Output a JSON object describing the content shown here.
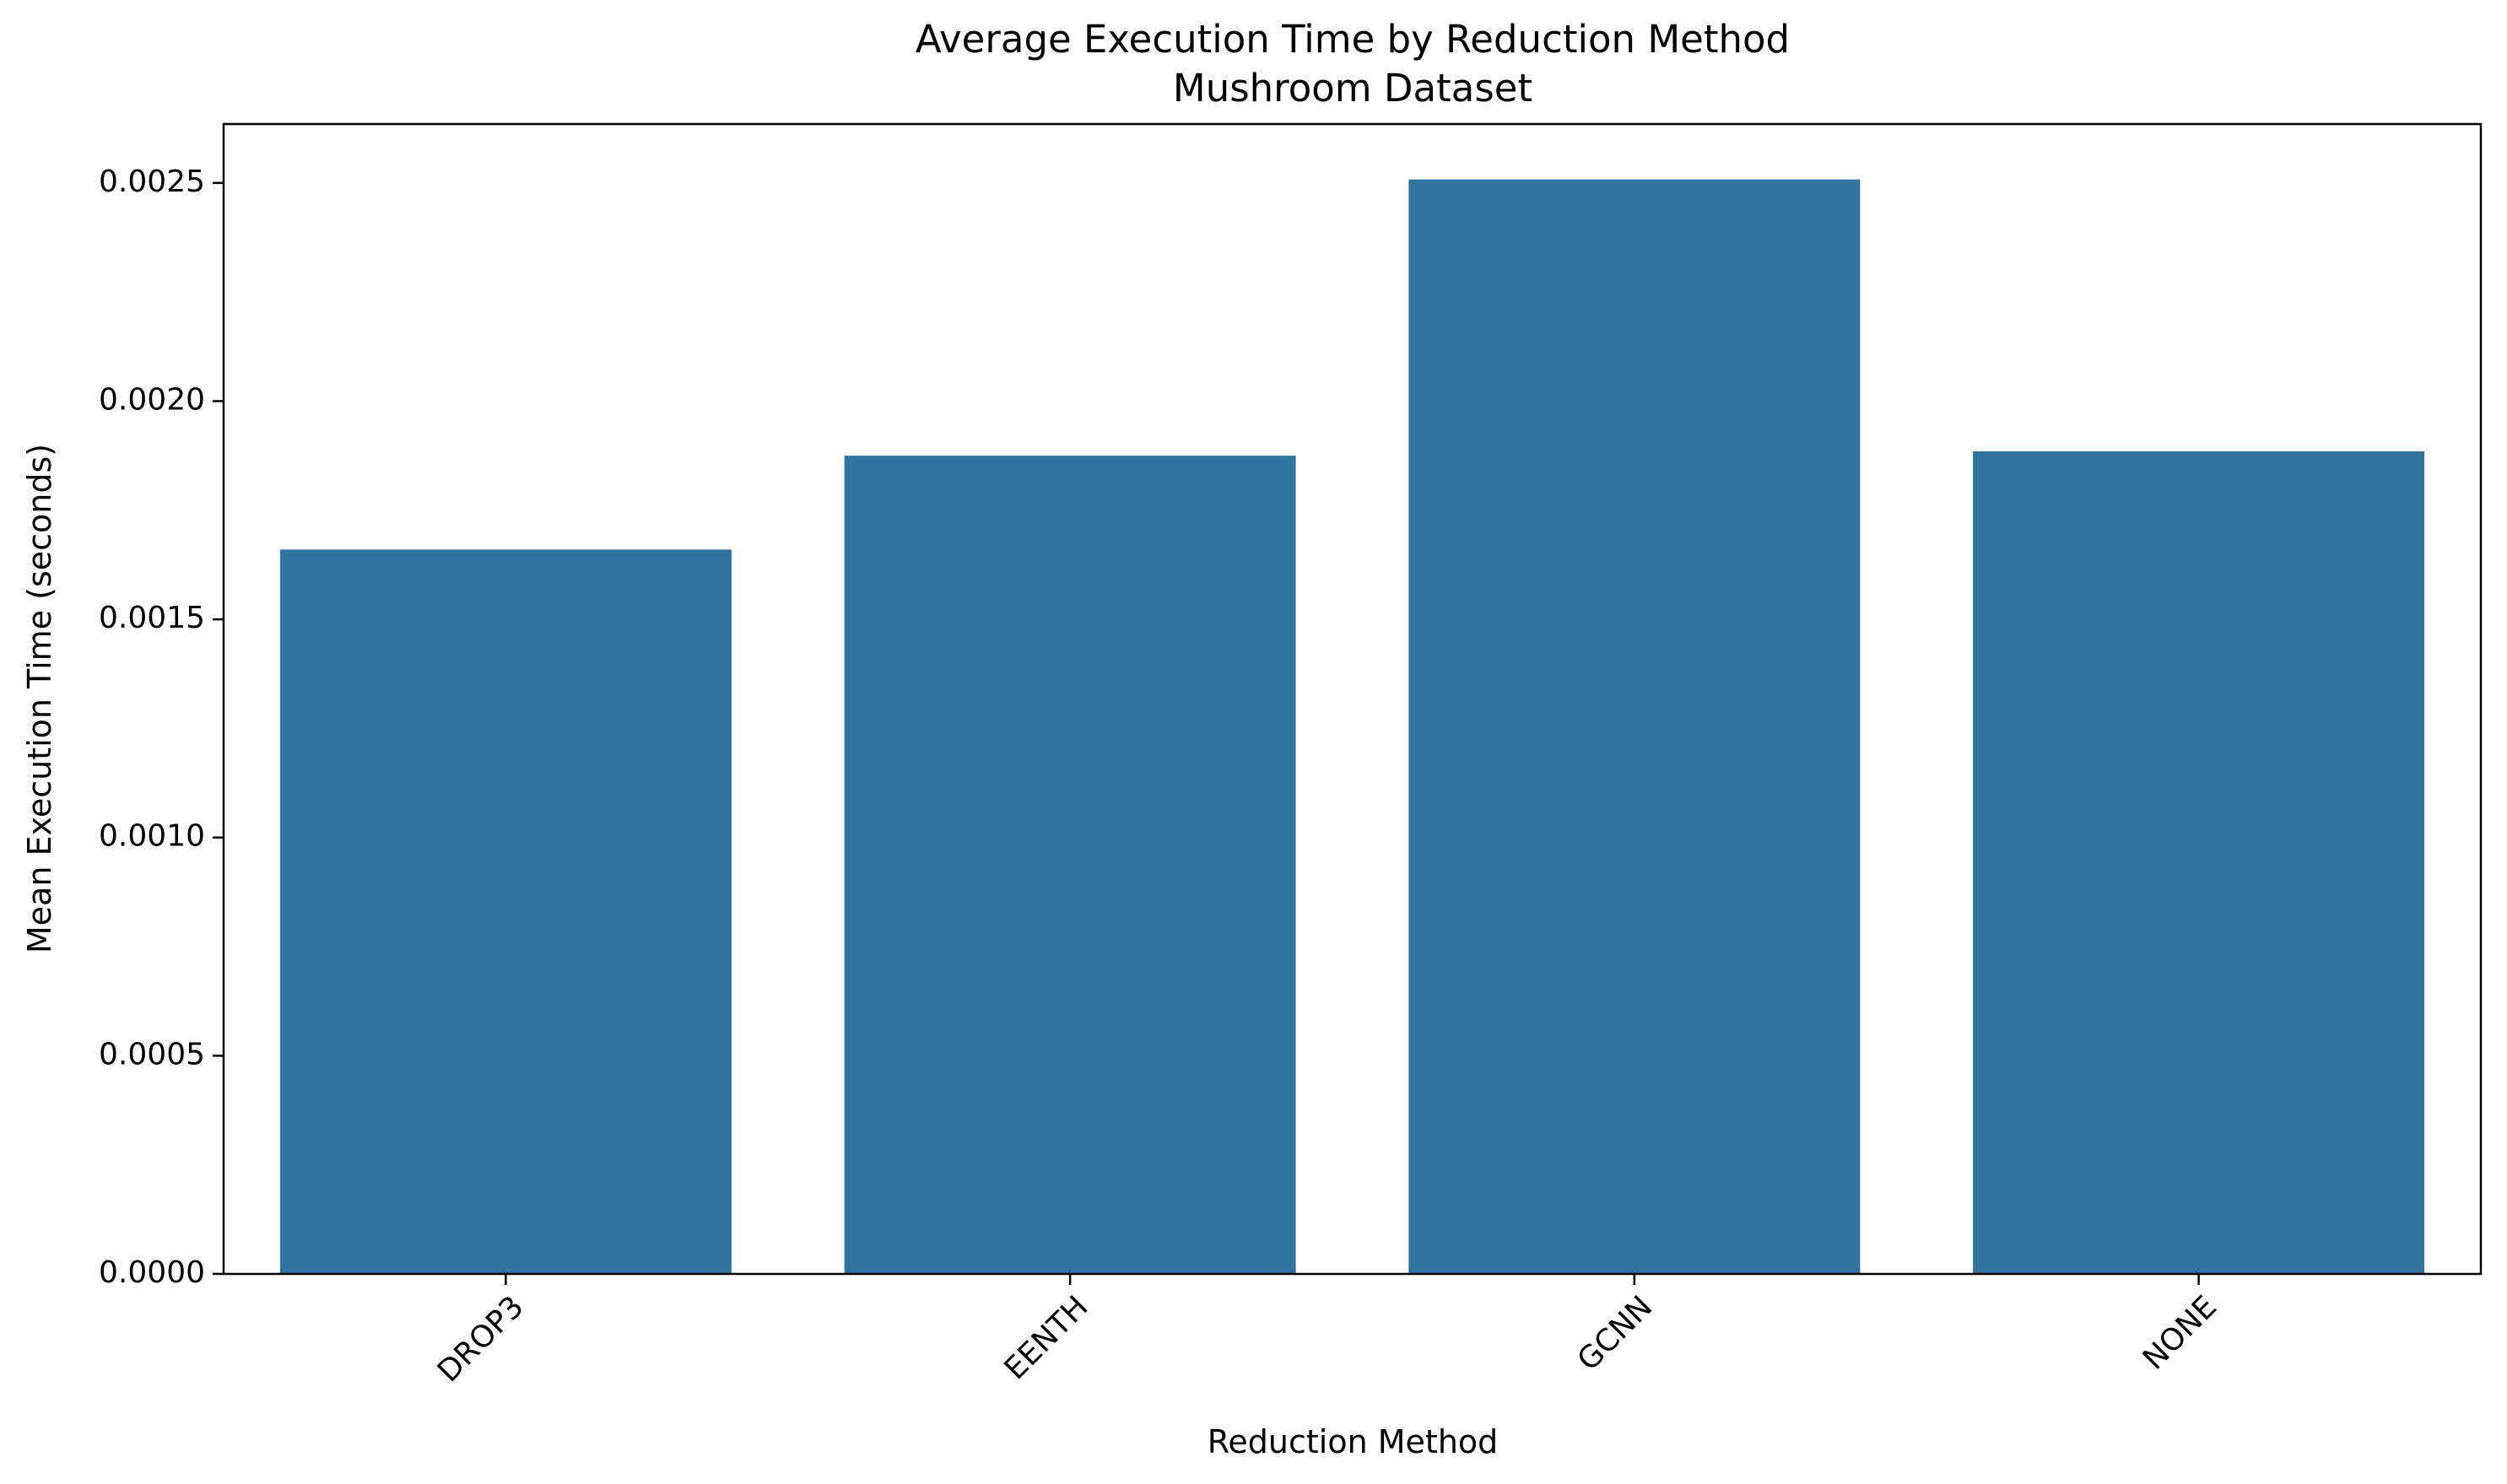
{
  "chart_data": {
    "type": "bar",
    "title": "Average Execution Time by Reduction Method",
    "subtitle": "Mushroom Dataset",
    "xlabel": "Reduction Method",
    "ylabel": "Mean Execution Time (seconds)",
    "categories": [
      "DROP3",
      "EENTH",
      "GCNN",
      "NONE"
    ],
    "values": [
      0.00166,
      0.001875,
      0.002508,
      0.001885
    ],
    "ylim": [
      0,
      0.002635
    ],
    "yticks": [
      0,
      0.0005,
      0.001,
      0.0015,
      0.002,
      0.0025
    ],
    "ytick_labels": [
      "0.0000",
      "0.0005",
      "0.0010",
      "0.0015",
      "0.0020",
      "0.0025"
    ],
    "grid": false,
    "legend": "none",
    "bar_color": "#3274a1",
    "xtick_rotation": -45
  }
}
